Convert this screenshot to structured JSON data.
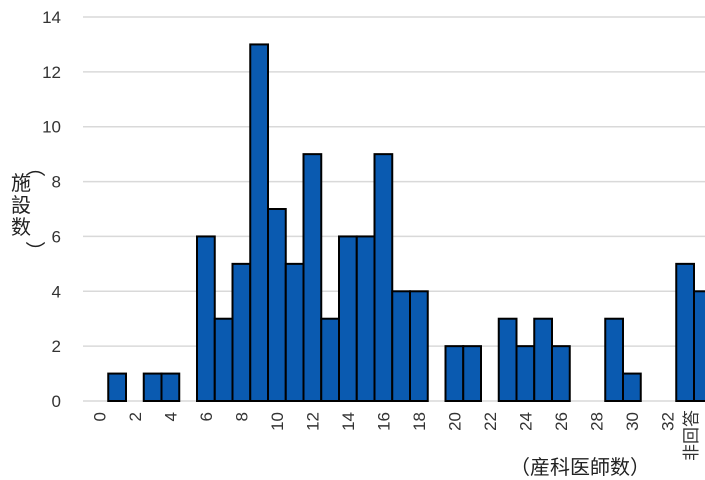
{
  "chart_data": {
    "type": "bar",
    "title": "",
    "xlabel": "（産科医師数）",
    "ylabel": "（施設数）",
    "ylim": [
      0,
      14
    ],
    "y_ticks": [
      0,
      2,
      4,
      6,
      8,
      10,
      12,
      14
    ],
    "grid": true,
    "legend": "none",
    "categories": [
      "0",
      "1",
      "2",
      "3",
      "4",
      "5",
      "6",
      "7",
      "8",
      "9",
      "10",
      "11",
      "12",
      "13",
      "14",
      "15",
      "16",
      "17",
      "18",
      "19",
      "20",
      "21",
      "22",
      "23",
      "24",
      "25",
      "26",
      "27",
      "28",
      "29",
      "30",
      "31",
      "32",
      "33",
      "34"
    ],
    "values": [
      0,
      1,
      0,
      1,
      1,
      0,
      6,
      3,
      5,
      13,
      7,
      5,
      9,
      3,
      6,
      6,
      9,
      4,
      4,
      0,
      2,
      2,
      0,
      3,
      2,
      3,
      2,
      0,
      0,
      3,
      1,
      0,
      0,
      5,
      4
    ],
    "x_tick_labels": [
      "0",
      "2",
      "4",
      "6",
      "8",
      "10",
      "12",
      "14",
      "16",
      "18",
      "20",
      "22",
      "24",
      "26",
      "28",
      "30",
      "32"
    ],
    "last_label": "非回答"
  },
  "colors": {
    "bar_fill": "#0a5ab0",
    "bar_stroke": "#000000",
    "grid": "#d9d9d9"
  }
}
